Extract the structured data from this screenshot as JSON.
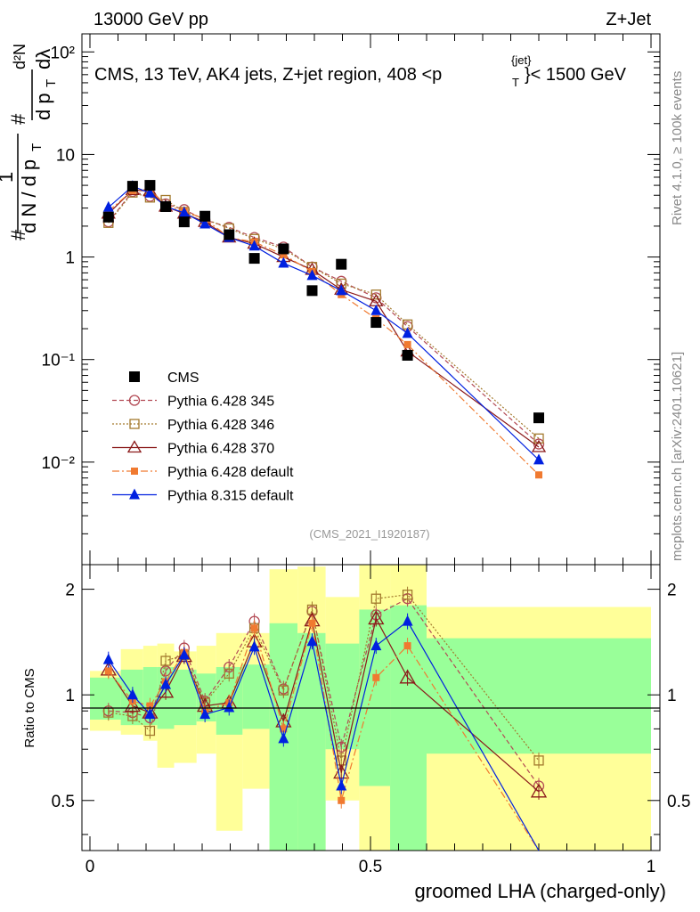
{
  "header": {
    "left": "13000 GeV pp",
    "right": "Z+Jet",
    "subtitle": "CMS, 13 TeV, AK4 jets, Z+jet region, 408 <p",
    "subtitle_sup": "{jet}",
    "subtitle_sub": "T",
    "subtitle_end": "}< 1500 GeV",
    "rivet": "Rivet 4.1.0, ≥ 100k events",
    "mcplots": "mcplots.cern.ch [arXiv:2401.10621]",
    "analysis": "(CMS_2021_I1920187)"
  },
  "ylabel_top": {
    "hash1": "#",
    "one": "1",
    "dN_left": "d N / d p",
    "T1": "T",
    "hash2": "#",
    "dpT": "d p",
    "T2": "T",
    "d2N": "d²N",
    "dlambda": "dλ"
  },
  "ylabel_bottom": "Ratio to CMS",
  "xlabel": "groomed LHA (charged-only)",
  "colors": {
    "cms": "#000000",
    "p345": "#b34a55",
    "p346": "#a37a2e",
    "p370": "#8b1a1a",
    "pdef": "#f07a30",
    "p8": "#0020e0",
    "band_green": "#99ff99",
    "band_yellow": "#ffff99"
  },
  "chart_data": {
    "type": "line",
    "title": "CMS, 13 TeV, AK4 jets, Z+jet region, 408 < pT(jet) < 1500 GeV",
    "xlabel": "groomed LHA (charged-only)",
    "ylabel": "1/dN/dpT dN²/dpT dλ",
    "xlim": [
      0,
      1
    ],
    "ylim": [
      0.001,
      150
    ],
    "yscale": "log",
    "xticks": [
      "0",
      "0.5",
      "1"
    ],
    "yticks": [
      "10⁻²",
      "10⁻¹",
      "1",
      "10",
      "10²"
    ],
    "x": [
      0.033,
      0.076,
      0.107,
      0.135,
      0.168,
      0.205,
      0.248,
      0.293,
      0.345,
      0.396,
      0.448,
      0.51,
      0.566,
      0.8
    ],
    "series": [
      {
        "name": "CMS",
        "key": "cms",
        "values": [
          2.45,
          4.9,
          5.0,
          3.1,
          2.2,
          2.5,
          1.65,
          0.97,
          1.2,
          0.47,
          0.85,
          0.23,
          0.11,
          0.027
        ]
      },
      {
        "name": "Pythia 6.428 345",
        "key": "p345",
        "values": [
          2.2,
          4.35,
          3.9,
          3.3,
          2.9,
          2.3,
          1.95,
          1.55,
          1.25,
          0.8,
          0.58,
          0.4,
          0.21,
          0.015
        ]
      },
      {
        "name": "Pythia 6.428 346",
        "key": "p346",
        "values": [
          2.15,
          4.25,
          3.8,
          3.6,
          2.75,
          2.35,
          1.9,
          1.5,
          1.2,
          0.8,
          0.55,
          0.43,
          0.22,
          0.017
        ]
      },
      {
        "name": "Pythia 6.428 370",
        "key": "p370",
        "values": [
          2.65,
          4.5,
          4.4,
          3.1,
          2.65,
          2.2,
          1.55,
          1.35,
          1.0,
          0.75,
          0.48,
          0.37,
          0.12,
          0.014
        ]
      },
      {
        "name": "Pythia 6.428 default",
        "key": "pdef",
        "values": [
          2.8,
          4.45,
          4.6,
          3.2,
          2.8,
          2.35,
          1.55,
          1.4,
          1.05,
          0.72,
          0.43,
          0.25,
          0.14,
          0.0075
        ]
      },
      {
        "name": "Pythia 8.315 default",
        "key": "p8",
        "values": [
          3.05,
          4.9,
          4.2,
          3.1,
          2.7,
          2.1,
          1.55,
          1.28,
          0.87,
          0.66,
          0.47,
          0.3,
          0.18,
          0.0105
        ]
      }
    ],
    "ratio": {
      "ylabel": "Ratio to CMS",
      "ylim": [
        0.36,
        2.35
      ],
      "yticks": [
        "0.5",
        "1",
        "2"
      ],
      "series": [
        {
          "key": "p345",
          "values": [
            0.9,
            0.89,
            0.86,
            1.17,
            1.36,
            0.96,
            1.2,
            1.62,
            1.04,
            1.73,
            0.71,
            1.69,
            1.88,
            0.55
          ]
        },
        {
          "key": "p346",
          "values": [
            0.89,
            0.87,
            0.79,
            1.25,
            1.3,
            0.95,
            1.15,
            1.55,
            1.03,
            1.75,
            0.65,
            1.88,
            1.93,
            0.65
          ]
        },
        {
          "key": "p370",
          "values": [
            1.18,
            0.93,
            0.89,
            1.02,
            1.29,
            0.93,
            0.95,
            1.42,
            0.84,
            1.63,
            0.6,
            1.65,
            1.12,
            0.53
          ]
        },
        {
          "key": "pdef",
          "values": [
            1.17,
            0.96,
            0.93,
            1.09,
            1.32,
            0.9,
            0.95,
            1.55,
            0.8,
            1.6,
            0.5,
            1.12,
            1.38,
            0.29
          ]
        },
        {
          "key": "p8",
          "values": [
            1.26,
            1.0,
            0.88,
            1.07,
            1.3,
            0.88,
            0.92,
            1.37,
            0.75,
            1.42,
            0.55,
            1.38,
            1.62,
            0.35
          ]
        }
      ],
      "bands": [
        {
          "xlo": 0.0,
          "xhi": 0.055,
          "g": [
            0.85,
            1.12
          ],
          "y": [
            0.79,
            1.17
          ]
        },
        {
          "xlo": 0.055,
          "xhi": 0.095,
          "g": [
            0.82,
            1.18
          ],
          "y": [
            0.77,
            1.35
          ]
        },
        {
          "xlo": 0.095,
          "xhi": 0.12,
          "g": [
            0.82,
            1.2
          ],
          "y": [
            0.74,
            1.38
          ]
        },
        {
          "xlo": 0.12,
          "xhi": 0.15,
          "g": [
            0.8,
            1.2
          ],
          "y": [
            0.62,
            1.4
          ]
        },
        {
          "xlo": 0.15,
          "xhi": 0.19,
          "g": [
            0.82,
            1.18
          ],
          "y": [
            0.64,
            1.33
          ]
        },
        {
          "xlo": 0.19,
          "xhi": 0.225,
          "g": [
            0.84,
            1.15
          ],
          "y": [
            0.68,
            1.38
          ]
        },
        {
          "xlo": 0.225,
          "xhi": 0.272,
          "g": [
            0.77,
            1.2
          ],
          "y": [
            0.41,
            1.5
          ]
        },
        {
          "xlo": 0.272,
          "xhi": 0.32,
          "g": [
            0.8,
            1.22
          ],
          "y": [
            0.54,
            1.5
          ]
        },
        {
          "xlo": 0.32,
          "xhi": 0.37,
          "g": [
            0.36,
            1.6
          ],
          "y": [
            0.36,
            2.28
          ]
        },
        {
          "xlo": 0.37,
          "xhi": 0.42,
          "g": [
            0.36,
            1.5
          ],
          "y": [
            0.36,
            2.32
          ]
        },
        {
          "xlo": 0.42,
          "xhi": 0.48,
          "g": [
            0.7,
            1.4
          ],
          "y": [
            0.5,
            1.9
          ]
        },
        {
          "xlo": 0.48,
          "xhi": 0.535,
          "g": [
            0.55,
            1.75
          ],
          "y": [
            0.36,
            2.35
          ]
        },
        {
          "xlo": 0.535,
          "xhi": 0.6,
          "g": [
            0.36,
            1.8
          ],
          "y": [
            0.36,
            2.35
          ]
        },
        {
          "xlo": 0.6,
          "xhi": 1.0,
          "g": [
            0.68,
            1.45
          ],
          "y": [
            0.36,
            1.78
          ]
        }
      ]
    }
  },
  "legend": [
    {
      "key": "cms",
      "label": "CMS"
    },
    {
      "key": "p345",
      "label": "Pythia 6.428 345"
    },
    {
      "key": "p346",
      "label": "Pythia 6.428 346"
    },
    {
      "key": "p370",
      "label": "Pythia 6.428 370"
    },
    {
      "key": "pdef",
      "label": "Pythia 6.428 default"
    },
    {
      "key": "p8",
      "label": "Pythia 8.315 default"
    }
  ]
}
